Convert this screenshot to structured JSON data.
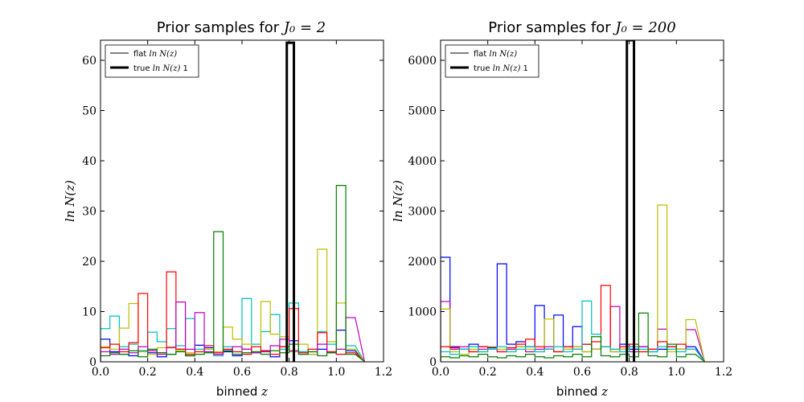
{
  "chart_data": [
    {
      "type": "histogram",
      "title": "Prior samples for",
      "title_math": "J₀ = 2",
      "xlabel": "binned",
      "xlabel_math": "z",
      "ylabel": "ln N(z)",
      "xlim": [
        0.0,
        1.2
      ],
      "ylim": [
        0,
        64
      ],
      "xticks": [
        "0.0",
        "0.2",
        "0.4",
        "0.6",
        "0.8",
        "1.0",
        "1.2"
      ],
      "yticks": [
        "0",
        "10",
        "20",
        "30",
        "40",
        "50",
        "60"
      ],
      "ytick_values": [
        0,
        10,
        20,
        30,
        40,
        50,
        60
      ],
      "bin_edges": [
        0.0,
        0.04,
        0.08,
        0.12,
        0.16,
        0.2,
        0.24,
        0.28,
        0.32,
        0.36,
        0.4,
        0.44,
        0.48,
        0.52,
        0.56,
        0.6,
        0.64,
        0.68,
        0.72,
        0.76,
        0.8,
        0.84,
        0.88,
        0.92,
        0.96,
        1.0,
        1.04,
        1.08
      ],
      "legend": [
        {
          "label": "flat",
          "math": "ln N(z)",
          "style": "thin"
        },
        {
          "label": "true",
          "math": "ln N(z)",
          "suffix": "1",
          "style": "thick"
        }
      ],
      "legend_position": "upper-left",
      "true_series": {
        "name": "true ln N(z) 1",
        "color": "#000000",
        "x_start": 0.79,
        "x_end": 0.82,
        "value": 63.5
      },
      "series": [
        {
          "color": "#0000ff",
          "values": [
            4.5,
            2.0,
            1.5,
            1.2,
            2.2,
            1.8,
            1.0,
            1.5,
            2.5,
            1.2,
            3.3,
            2.8,
            1.5,
            2.0,
            1.2,
            2.5,
            1.8,
            2.2,
            1.0,
            3.0,
            4.2,
            2.0,
            1.5,
            2.5,
            1.8,
            6.3,
            2.2
          ]
        },
        {
          "color": "#00bfbf",
          "values": [
            6.6,
            9.1,
            3.0,
            3.5,
            2.2,
            5.9,
            4.0,
            6.6,
            3.2,
            8.6,
            2.5,
            1.8,
            1.2,
            3.0,
            2.0,
            12.6,
            3.5,
            6.0,
            9.4,
            2.5,
            11.7,
            2.0,
            1.5,
            6.0,
            3.5,
            1.5,
            3.2
          ]
        },
        {
          "color": "#bfbf00",
          "values": [
            3.0,
            2.5,
            6.7,
            11.6,
            2.0,
            1.5,
            2.8,
            3.0,
            2.2,
            1.8,
            1.5,
            2.5,
            2.0,
            6.9,
            4.5,
            3.5,
            2.0,
            12.0,
            5.5,
            5.0,
            2.0,
            3.5,
            1.5,
            22.4,
            4.0,
            11.7,
            2.5
          ]
        },
        {
          "color": "#ff0000",
          "values": [
            2.8,
            3.5,
            2.0,
            3.8,
            13.6,
            2.2,
            1.8,
            17.9,
            2.5,
            1.5,
            2.0,
            3.2,
            1.8,
            2.5,
            2.0,
            1.5,
            3.0,
            2.2,
            1.5,
            3.0,
            10.6,
            1.8,
            2.5,
            5.8,
            2.0,
            1.5,
            1.8
          ]
        },
        {
          "color": "#bf00bf",
          "values": [
            2.0,
            1.5,
            2.5,
            1.8,
            3.0,
            2.2,
            1.5,
            2.8,
            11.9,
            2.5,
            9.8,
            2.0,
            1.5,
            2.2,
            3.0,
            2.5,
            1.8,
            2.0,
            3.2,
            4.5,
            2.2,
            1.5,
            2.0,
            3.5,
            1.8,
            2.5,
            8.8
          ]
        },
        {
          "color": "#008000",
          "values": [
            1.2,
            1.8,
            1.5,
            2.2,
            1.0,
            2.5,
            1.8,
            1.5,
            2.0,
            1.2,
            1.5,
            1.8,
            25.9,
            2.2,
            1.5,
            1.8,
            2.0,
            1.5,
            2.2,
            1.8,
            3.5,
            1.5,
            2.0,
            1.2,
            1.8,
            35.1,
            1.5
          ]
        }
      ]
    },
    {
      "type": "histogram",
      "title": "Prior samples for",
      "title_math": "J₀ = 200",
      "xlabel": "binned",
      "xlabel_math": "z",
      "ylabel": "ln N(z)",
      "xlim": [
        0.0,
        1.2
      ],
      "ylim": [
        0,
        6400
      ],
      "xticks": [
        "0.0",
        "0.2",
        "0.4",
        "0.6",
        "0.8",
        "1.0",
        "1.2"
      ],
      "yticks": [
        "0",
        "1000",
        "2000",
        "3000",
        "4000",
        "5000",
        "6000"
      ],
      "ytick_values": [
        0,
        1000,
        2000,
        3000,
        4000,
        5000,
        6000
      ],
      "bin_edges": [
        0.0,
        0.04,
        0.08,
        0.12,
        0.16,
        0.2,
        0.24,
        0.28,
        0.32,
        0.36,
        0.4,
        0.44,
        0.48,
        0.52,
        0.56,
        0.6,
        0.64,
        0.68,
        0.72,
        0.76,
        0.8,
        0.84,
        0.88,
        0.92,
        0.96,
        1.0,
        1.04,
        1.08
      ],
      "legend": [
        {
          "label": "flat",
          "math": "ln N(z)",
          "style": "thin"
        },
        {
          "label": "true",
          "math": "ln N(z)",
          "suffix": "1",
          "style": "thick"
        }
      ],
      "legend_position": "upper-left",
      "true_series": {
        "name": "true ln N(z) 1",
        "color": "#000000",
        "x_start": 0.79,
        "x_end": 0.82,
        "value": 6400
      },
      "series": [
        {
          "color": "#0000ff",
          "values": [
            2080,
            300,
            250,
            350,
            300,
            280,
            1950,
            350,
            400,
            300,
            1120,
            250,
            930,
            300,
            700,
            350,
            250,
            300,
            200,
            350,
            250,
            300,
            200,
            250,
            300,
            250,
            300
          ]
        },
        {
          "color": "#bf00bf",
          "values": [
            1200,
            250,
            300,
            200,
            250,
            300,
            200,
            250,
            300,
            200,
            250,
            300,
            200,
            250,
            300,
            200,
            250,
            300,
            1100,
            250,
            200,
            300,
            250,
            650,
            300,
            250,
            640
          ]
        },
        {
          "color": "#bfbf00",
          "values": [
            1050,
            200,
            150,
            250,
            200,
            300,
            250,
            200,
            300,
            250,
            200,
            850,
            200,
            250,
            300,
            200,
            250,
            300,
            200,
            250,
            300,
            200,
            250,
            3120,
            200,
            250,
            840
          ]
        },
        {
          "color": "#ff0000",
          "values": [
            300,
            280,
            250,
            200,
            300,
            250,
            200,
            280,
            350,
            450,
            300,
            250,
            200,
            300,
            250,
            350,
            400,
            1520,
            250,
            300,
            350,
            200,
            250,
            400,
            300,
            350,
            250
          ]
        },
        {
          "color": "#00bfbf",
          "values": [
            200,
            150,
            250,
            300,
            200,
            250,
            300,
            200,
            250,
            300,
            200,
            250,
            300,
            200,
            250,
            1210,
            550,
            300,
            250,
            200,
            300,
            250,
            200,
            300,
            250,
            200,
            250
          ]
        },
        {
          "color": "#008000",
          "values": [
            100,
            80,
            120,
            100,
            150,
            100,
            80,
            120,
            100,
            150,
            100,
            80,
            120,
            100,
            150,
            100,
            500,
            120,
            100,
            150,
            100,
            970,
            120,
            100,
            350,
            100,
            150
          ]
        }
      ]
    }
  ]
}
